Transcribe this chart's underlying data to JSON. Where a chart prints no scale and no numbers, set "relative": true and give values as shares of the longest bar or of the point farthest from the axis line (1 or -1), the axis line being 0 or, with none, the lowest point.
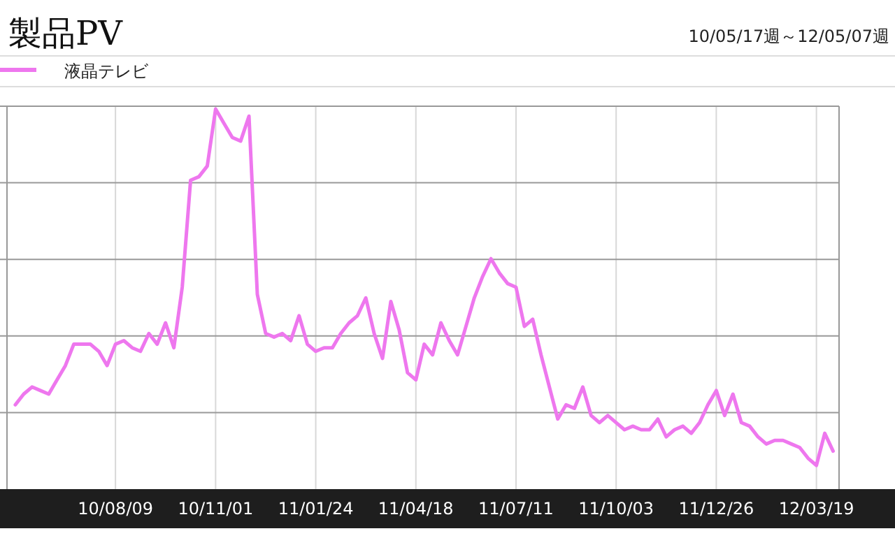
{
  "chart_data": {
    "type": "line",
    "title": "製品PV",
    "subtitle": "10/05/17週～12/05/07週",
    "relative": true,
    "grid": true,
    "legend": "top left",
    "tick_labels": "x",
    "marker": "none",
    "line_style": "solid",
    "xlim": [
      "2010-05-10",
      "2012-04-07"
    ],
    "xticks": [
      {
        "value": "2010-08-09",
        "label": "10/08/09"
      },
      {
        "value": "2010-11-01",
        "label": "10/11/01"
      },
      {
        "value": "2011-01-24",
        "label": "11/01/24"
      },
      {
        "value": "2011-04-18",
        "label": "11/04/18"
      },
      {
        "value": "2011-07-11",
        "label": "11/07/11"
      },
      {
        "value": "2011-10-03",
        "label": "11/10/03"
      },
      {
        "value": "2011-12-26",
        "label": "11/12/26"
      },
      {
        "value": "2012-03-19",
        "label": "12/03/19"
      }
    ],
    "x": [
      "2010-05-17",
      "2010-05-24",
      "2010-05-31",
      "2010-06-07",
      "2010-06-14",
      "2010-06-21",
      "2010-06-28",
      "2010-07-05",
      "2010-07-12",
      "2010-07-19",
      "2010-07-26",
      "2010-08-02",
      "2010-08-09",
      "2010-08-16",
      "2010-08-23",
      "2010-08-30",
      "2010-09-06",
      "2010-09-13",
      "2010-09-20",
      "2010-09-27",
      "2010-10-04",
      "2010-10-11",
      "2010-10-18",
      "2010-10-25",
      "2010-11-01",
      "2010-11-08",
      "2010-11-15",
      "2010-11-22",
      "2010-11-29",
      "2010-12-06",
      "2010-12-13",
      "2010-12-20",
      "2010-12-27",
      "2011-01-03",
      "2011-01-10",
      "2011-01-17",
      "2011-01-24",
      "2011-01-31",
      "2011-02-07",
      "2011-02-14",
      "2011-02-21",
      "2011-02-28",
      "2011-03-07",
      "2011-03-14",
      "2011-03-21",
      "2011-03-28",
      "2011-04-04",
      "2011-04-11",
      "2011-04-18",
      "2011-04-25",
      "2011-05-02",
      "2011-05-09",
      "2011-05-16",
      "2011-05-23",
      "2011-05-30",
      "2011-06-06",
      "2011-06-13",
      "2011-06-20",
      "2011-06-27",
      "2011-07-04",
      "2011-07-11",
      "2011-07-18",
      "2011-07-25",
      "2011-08-01",
      "2011-08-08",
      "2011-08-15",
      "2011-08-22",
      "2011-08-29",
      "2011-09-05",
      "2011-09-12",
      "2011-09-19",
      "2011-09-26",
      "2011-10-03",
      "2011-10-10",
      "2011-10-17",
      "2011-10-24",
      "2011-10-31",
      "2011-11-07",
      "2011-11-14",
      "2011-11-21",
      "2011-11-28",
      "2011-12-05",
      "2011-12-12",
      "2011-12-19",
      "2011-12-26",
      "2012-01-02",
      "2012-01-09",
      "2012-01-16",
      "2012-01-23",
      "2012-01-30",
      "2012-02-06",
      "2012-02-13",
      "2012-02-20",
      "2012-02-27",
      "2012-03-05",
      "2012-03-12",
      "2012-03-19",
      "2012-03-26",
      "2012-04-02"
    ],
    "series": [
      {
        "name": "液晶テレビ",
        "color": "#ee77ee",
        "values": [
          0.17,
          0.2,
          0.22,
          0.21,
          0.2,
          0.24,
          0.28,
          0.34,
          0.34,
          0.34,
          0.32,
          0.28,
          0.34,
          0.35,
          0.33,
          0.32,
          0.37,
          0.34,
          0.4,
          0.33,
          0.5,
          0.8,
          0.81,
          0.84,
          1,
          0.96,
          0.92,
          0.91,
          0.98,
          0.48,
          0.37,
          0.36,
          0.37,
          0.35,
          0.42,
          0.34,
          0.32,
          0.33,
          0.33,
          0.37,
          0.4,
          0.42,
          0.47,
          0.37,
          0.3,
          0.46,
          0.38,
          0.26,
          0.24,
          0.34,
          0.31,
          0.4,
          0.35,
          0.31,
          0.39,
          0.47,
          0.53,
          0.58,
          0.54,
          0.51,
          0.5,
          0.39,
          0.41,
          0.31,
          0.22,
          0.13,
          0.17,
          0.16,
          0.22,
          0.14,
          0.12,
          0.14,
          0.12,
          0.1,
          0.11,
          0.1,
          0.1,
          0.13,
          0.08,
          0.1,
          0.11,
          0.09,
          0.12,
          0.17,
          0.21,
          0.14,
          0.2,
          0.12,
          0.11,
          0.08,
          0.06,
          0.07,
          0.07,
          0.06,
          0.05,
          0.02,
          0,
          0.09,
          0.04
        ]
      }
    ]
  }
}
